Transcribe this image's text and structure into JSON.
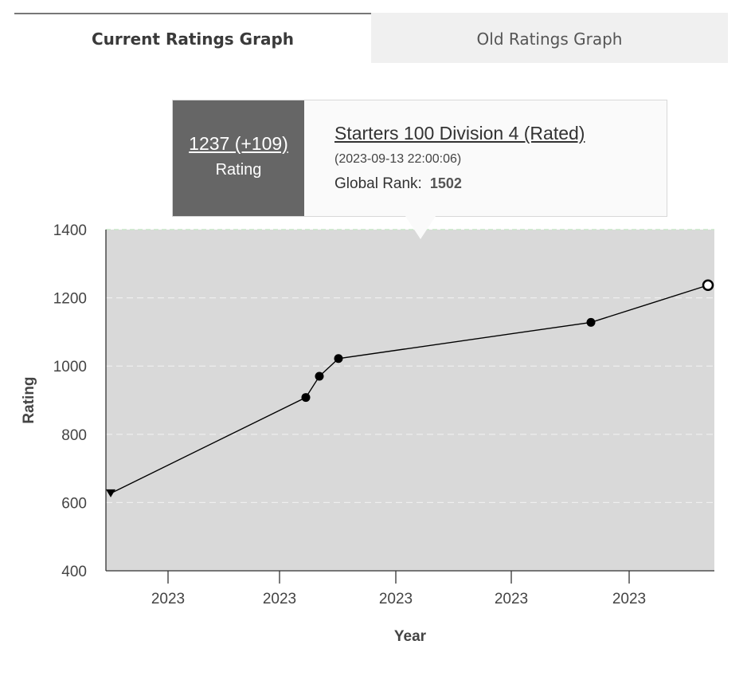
{
  "tabs": {
    "current": "Current Ratings Graph",
    "old": "Old Ratings Graph"
  },
  "tooltip": {
    "rating": "1237 (+109)",
    "rating_label": "Rating",
    "contest": "Starters 100 Division 4 (Rated)",
    "datetime": "(2023-09-13 22:00:06)",
    "rank_label": "Global Rank:",
    "rank_value": "1502"
  },
  "colors": {
    "plot_bg": "#d9d9d9",
    "line": "#000000",
    "tooltip_left_bg": "#666666",
    "tab_inactive_bg": "#f0f0f0"
  },
  "chart_data": {
    "type": "line",
    "xlabel": "Year",
    "ylabel": "Rating",
    "ylim": [
      400,
      1400
    ],
    "yticks": [
      400,
      600,
      800,
      1000,
      1200,
      1400
    ],
    "xtick_labels": [
      "2023",
      "2023",
      "2023",
      "2023",
      "2023"
    ],
    "grid": true,
    "series": [
      {
        "values": [
          627,
          908,
          970,
          1022,
          1128,
          1237
        ],
        "markers": [
          "triangle-down",
          "circle",
          "circle",
          "circle",
          "circle",
          "open-circle"
        ]
      }
    ]
  }
}
